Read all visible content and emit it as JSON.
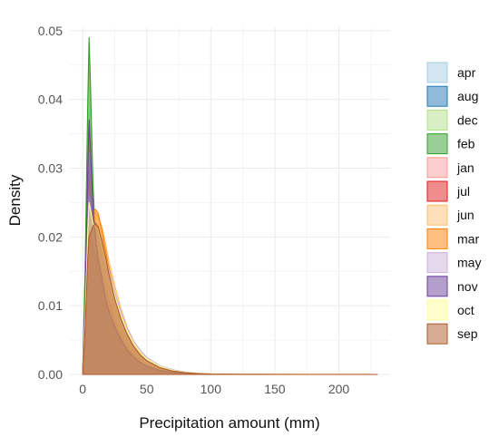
{
  "chart_data": {
    "type": "area",
    "subtype": "density",
    "xlabel": "Precipitation amount (mm)",
    "ylabel": "Density",
    "xlim": [
      -10,
      240
    ],
    "ylim": [
      0,
      0.0505
    ],
    "x_ticks": [
      0,
      50,
      100,
      150,
      200
    ],
    "y_ticks": [
      0.0,
      0.01,
      0.02,
      0.03,
      0.04,
      0.05
    ],
    "x_tick_labels": [
      "0",
      "50",
      "100",
      "150",
      "200"
    ],
    "y_tick_labels": [
      "0.00",
      "0.01",
      "0.02",
      "0.03",
      "0.04",
      "0.05"
    ],
    "grid": true,
    "legend_position": "right",
    "x": [
      0,
      2,
      4,
      5,
      6,
      8,
      10,
      12,
      15,
      18,
      20,
      25,
      30,
      35,
      40,
      45,
      50,
      60,
      70,
      80,
      90,
      100,
      120,
      140,
      160,
      180,
      200,
      220,
      230
    ],
    "series": [
      {
        "name": "apr",
        "color": "#a6cee3",
        "values": [
          0,
          0.01,
          0.03,
          0.038,
          0.034,
          0.024,
          0.021,
          0.019,
          0.016,
          0.013,
          0.011,
          0.008,
          0.0055,
          0.0038,
          0.0025,
          0.0017,
          0.0011,
          0.0006,
          0.0003,
          0.00015,
          0.0001,
          6e-05,
          3e-05,
          2e-05,
          1e-05,
          1e-05,
          1e-05,
          1e-05,
          0
        ]
      },
      {
        "name": "aug",
        "color": "#1f78b4",
        "values": [
          0,
          0.01,
          0.026,
          0.03,
          0.026,
          0.019,
          0.017,
          0.016,
          0.014,
          0.011,
          0.0095,
          0.007,
          0.005,
          0.0034,
          0.0023,
          0.0015,
          0.001,
          0.0005,
          0.00025,
          0.00012,
          6e-05,
          3e-05,
          1e-05,
          0,
          0,
          0,
          0,
          0,
          0
        ]
      },
      {
        "name": "dec",
        "color": "#b2df8a",
        "values": [
          0,
          0.015,
          0.038,
          0.046,
          0.04,
          0.027,
          0.02,
          0.016,
          0.012,
          0.009,
          0.0075,
          0.0052,
          0.0036,
          0.0025,
          0.0017,
          0.0011,
          0.0007,
          0.0004,
          0.0002,
          0.0001,
          5e-05,
          3e-05,
          1e-05,
          0,
          0,
          0,
          0,
          0,
          0
        ]
      },
      {
        "name": "feb",
        "color": "#33a02c",
        "values": [
          0,
          0.016,
          0.04,
          0.049,
          0.043,
          0.028,
          0.02,
          0.016,
          0.0115,
          0.0085,
          0.007,
          0.0048,
          0.0033,
          0.0023,
          0.0016,
          0.001,
          0.0007,
          0.0003,
          0.00015,
          7e-05,
          3e-05,
          2e-05,
          0,
          0,
          0,
          0,
          0,
          0,
          0
        ]
      },
      {
        "name": "jan",
        "color": "#fb9a99",
        "values": [
          0,
          0.012,
          0.03,
          0.036,
          0.032,
          0.024,
          0.022,
          0.02,
          0.017,
          0.0145,
          0.013,
          0.0095,
          0.0068,
          0.0047,
          0.0032,
          0.0022,
          0.0015,
          0.0008,
          0.0004,
          0.0002,
          0.0001,
          6e-05,
          3e-05,
          2e-05,
          1e-05,
          0,
          0,
          0,
          0
        ]
      },
      {
        "name": "jul",
        "color": "#e31a1c",
        "values": [
          0,
          0.008,
          0.018,
          0.021,
          0.02,
          0.018,
          0.017,
          0.016,
          0.0145,
          0.0125,
          0.011,
          0.008,
          0.0057,
          0.004,
          0.0028,
          0.0019,
          0.0013,
          0.0006,
          0.0003,
          0.00015,
          7e-05,
          4e-05,
          1e-05,
          0,
          0,
          0,
          0,
          0,
          0
        ]
      },
      {
        "name": "jun",
        "color": "#fdbf6f",
        "values": [
          0,
          0.007,
          0.016,
          0.019,
          0.02,
          0.0225,
          0.0235,
          0.023,
          0.0215,
          0.019,
          0.017,
          0.013,
          0.0095,
          0.0068,
          0.0048,
          0.0034,
          0.0024,
          0.0012,
          0.0006,
          0.0003,
          0.00015,
          8e-05,
          4e-05,
          2e-05,
          1e-05,
          0,
          0,
          0,
          0
        ]
      },
      {
        "name": "mar",
        "color": "#ff7f00",
        "values": [
          0,
          0.008,
          0.019,
          0.022,
          0.022,
          0.0235,
          0.024,
          0.0235,
          0.021,
          0.018,
          0.016,
          0.012,
          0.0085,
          0.006,
          0.0042,
          0.003,
          0.002,
          0.001,
          0.0005,
          0.00025,
          0.00012,
          7e-05,
          3e-05,
          2e-05,
          1e-05,
          1e-05,
          1e-05,
          1e-05,
          0
        ]
      },
      {
        "name": "may",
        "color": "#cab2d6",
        "values": [
          0,
          0.009,
          0.022,
          0.026,
          0.025,
          0.022,
          0.021,
          0.0205,
          0.019,
          0.017,
          0.0155,
          0.012,
          0.009,
          0.0066,
          0.0048,
          0.0035,
          0.0025,
          0.0013,
          0.0007,
          0.00035,
          0.00018,
          0.0001,
          5e-05,
          2e-05,
          1e-05,
          0,
          0,
          0,
          0
        ]
      },
      {
        "name": "nov",
        "color": "#6a3d9a",
        "values": [
          0,
          0.012,
          0.03,
          0.037,
          0.033,
          0.024,
          0.02,
          0.017,
          0.014,
          0.011,
          0.0095,
          0.007,
          0.005,
          0.0035,
          0.0025,
          0.0017,
          0.0012,
          0.0006,
          0.0003,
          0.00015,
          7e-05,
          4e-05,
          2e-05,
          1e-05,
          0,
          0,
          0,
          0,
          0
        ]
      },
      {
        "name": "oct",
        "color": "#ffff99",
        "values": [
          0,
          0.009,
          0.021,
          0.025,
          0.024,
          0.022,
          0.0215,
          0.021,
          0.019,
          0.0165,
          0.015,
          0.0115,
          0.0085,
          0.0062,
          0.0045,
          0.0032,
          0.0023,
          0.0012,
          0.0006,
          0.0003,
          0.00015,
          9e-05,
          4e-05,
          2e-05,
          1e-05,
          1e-05,
          0,
          0,
          0
        ]
      },
      {
        "name": "sep",
        "color": "#b15928",
        "values": [
          0,
          0.007,
          0.017,
          0.02,
          0.0205,
          0.0215,
          0.022,
          0.0215,
          0.0195,
          0.017,
          0.015,
          0.011,
          0.008,
          0.0057,
          0.004,
          0.0028,
          0.002,
          0.001,
          0.0005,
          0.00025,
          0.00012,
          6e-05,
          3e-05,
          1e-05,
          0,
          0,
          0,
          0,
          0
        ]
      }
    ]
  }
}
